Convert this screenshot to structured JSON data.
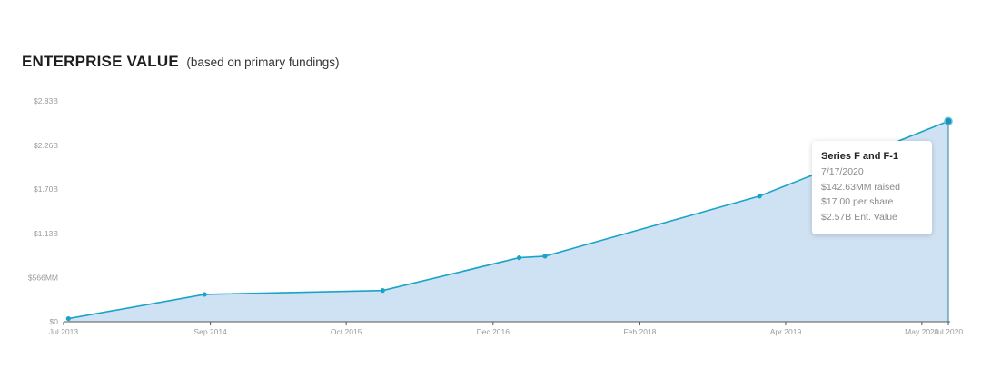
{
  "header": {
    "title": "ENTERPRISE VALUE",
    "subtitle": "(based on primary fundings)"
  },
  "colors": {
    "line": "#1aa3c8",
    "fill": "#cfe2f3",
    "axis": "#555555"
  },
  "chart_data": {
    "type": "area",
    "title": "ENTERPRISE VALUE",
    "subtitle": "(based on primary fundings)",
    "xlabel": "",
    "ylabel": "",
    "x_axis": "date",
    "x_range": [
      "2013-07-01",
      "2020-07-17"
    ],
    "ylim": [
      0,
      2830
    ],
    "y_unit": "$MM",
    "y_ticks": [
      {
        "value": 0,
        "label": "$0"
      },
      {
        "value": 566,
        "label": "$566MM"
      },
      {
        "value": 1130,
        "label": "$1.13B"
      },
      {
        "value": 1700,
        "label": "$1.70B"
      },
      {
        "value": 2260,
        "label": "$2.26B"
      },
      {
        "value": 2830,
        "label": "$2.83B"
      }
    ],
    "x_ticks": [
      {
        "date": "2013-07-01",
        "label": "Jul 2013"
      },
      {
        "date": "2014-09-01",
        "label": "Sep 2014"
      },
      {
        "date": "2015-10-01",
        "label": "Oct 2015"
      },
      {
        "date": "2016-12-01",
        "label": "Dec 2016"
      },
      {
        "date": "2018-02-01",
        "label": "Feb 2018"
      },
      {
        "date": "2019-04-01",
        "label": "Apr 2019"
      },
      {
        "date": "2020-05-01",
        "label": "May 2020"
      },
      {
        "date": "2020-07-17",
        "label": "Jul 2020"
      }
    ],
    "grid": false,
    "series": [
      {
        "points": [
          {
            "x": "2013-07-15",
            "y": 40
          },
          {
            "x": "2014-08-15",
            "y": 350
          },
          {
            "x": "2016-01-15",
            "y": 400
          },
          {
            "x": "2017-02-15",
            "y": 820
          },
          {
            "x": "2017-05-01",
            "y": 840
          },
          {
            "x": "2019-01-15",
            "y": 1610
          },
          {
            "x": "2020-07-17",
            "y": 2570
          }
        ]
      }
    ],
    "tooltip": {
      "title": "Series F and F-1",
      "lines": [
        "7/17/2020",
        "$142.63MM raised",
        "$17.00 per share",
        "$2.57B Ent. Value"
      ]
    }
  }
}
